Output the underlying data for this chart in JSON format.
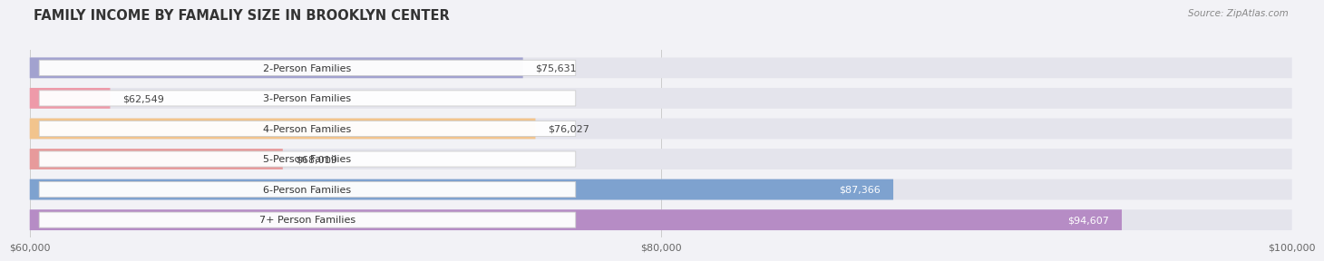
{
  "title": "FAMILY INCOME BY FAMALIY SIZE IN BROOKLYN CENTER",
  "source": "Source: ZipAtlas.com",
  "categories": [
    "2-Person Families",
    "3-Person Families",
    "4-Person Families",
    "5-Person Families",
    "6-Person Families",
    "7+ Person Families"
  ],
  "values": [
    75631,
    62549,
    76027,
    68019,
    87366,
    94607
  ],
  "bar_colors": [
    "#9999cc",
    "#f090a0",
    "#f5c080",
    "#e89090",
    "#7099cc",
    "#b080c0"
  ],
  "bar_bg_color": "#e4e4ec",
  "xmin": 60000,
  "xmax": 100000,
  "xticks": [
    60000,
    80000,
    100000
  ],
  "xtick_labels": [
    "$60,000",
    "$80,000",
    "$100,000"
  ],
  "bg_color": "#f2f2f6",
  "title_fontsize": 10.5,
  "bar_label_fontsize": 8,
  "value_label_fontsize": 8,
  "source_fontsize": 7.5
}
